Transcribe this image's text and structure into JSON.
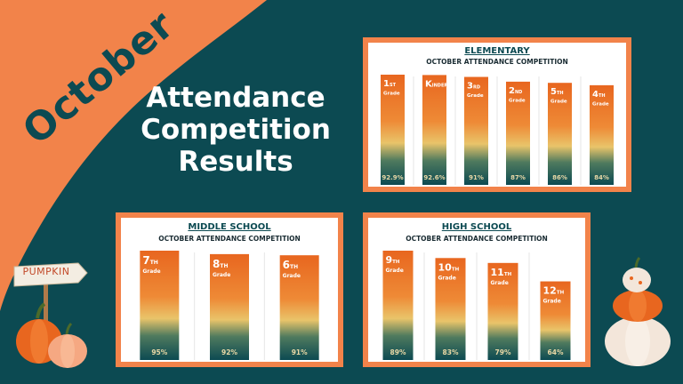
{
  "month": "October",
  "headline": [
    "Attendance",
    "Competition",
    "Results"
  ],
  "sign_text": "PUMPKIN",
  "colors": {
    "background": "#0c4a52",
    "accent": "#f2834a",
    "bar_top": "#e8661f",
    "bar_mid": "#e9c46a",
    "bar_bottom": "#0c4a52"
  },
  "chart_data": [
    {
      "type": "bar",
      "title": "ELEMENTARY",
      "subtitle": "OCTOBER ATTENDANCE COMPETITION",
      "categories": [
        {
          "main": "1",
          "sup": "ST",
          "sub": "Grade"
        },
        {
          "main": "K",
          "sup": "INDER",
          "sub": ""
        },
        {
          "main": "3",
          "sup": "RD",
          "sub": "Grade"
        },
        {
          "main": "2",
          "sup": "ND",
          "sub": "Grade"
        },
        {
          "main": "5",
          "sup": "TH",
          "sub": "Grade"
        },
        {
          "main": "4",
          "sup": "TH",
          "sub": "Grade"
        }
      ],
      "values": [
        92.9,
        92.6,
        91,
        87,
        86,
        84
      ],
      "value_labels": [
        "92.9%",
        "92.6%",
        "91%",
        "87%",
        "86%",
        "84%"
      ]
    },
    {
      "type": "bar",
      "title": "MIDDLE SCHOOL",
      "subtitle": "OCTOBER ATTENDANCE COMPETITION",
      "categories": [
        {
          "main": "7",
          "sup": "TH",
          "sub": "Grade"
        },
        {
          "main": "8",
          "sup": "TH",
          "sub": "Grade"
        },
        {
          "main": "6",
          "sup": "TH",
          "sub": "Grade"
        }
      ],
      "values": [
        95,
        92,
        91
      ],
      "value_labels": [
        "95%",
        "92%",
        "91%"
      ]
    },
    {
      "type": "bar",
      "title": "HIGH SCHOOL",
      "subtitle": "OCTOBER ATTENDANCE COMPETITION",
      "categories": [
        {
          "main": "9",
          "sup": "TH",
          "sub": "Grade"
        },
        {
          "main": "10",
          "sup": "TH",
          "sub": "Grade"
        },
        {
          "main": "11",
          "sup": "TH",
          "sub": "Grade"
        },
        {
          "main": "12",
          "sup": "TH",
          "sub": "Grade"
        }
      ],
      "values": [
        89,
        83,
        79,
        64
      ],
      "value_labels": [
        "89%",
        "83%",
        "79%",
        "64%"
      ]
    }
  ]
}
